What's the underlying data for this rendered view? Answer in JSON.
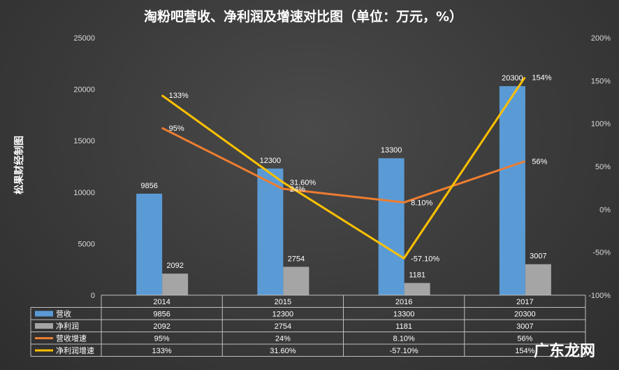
{
  "chart_data": {
    "type": "bar",
    "title": "淘粉吧营收、净利润及增速对比图（单位：万元，%）",
    "ylabel": "松果财经制图",
    "categories": [
      "2014",
      "2015",
      "2016",
      "2017"
    ],
    "ylim": [
      0,
      25000
    ],
    "y2lim": [
      -100,
      200
    ],
    "y_ticks": [
      "0",
      "5000",
      "10000",
      "15000",
      "20000",
      "25000"
    ],
    "y2_ticks": [
      "-100%",
      "-50%",
      "0%",
      "50%",
      "100%",
      "150%",
      "200%"
    ],
    "series": [
      {
        "name": "营收",
        "kind": "bar",
        "axis": "left",
        "color": "#5b9bd5",
        "values": [
          9856,
          12300,
          13300,
          20300
        ],
        "labels": [
          "9856",
          "12300",
          "13300",
          "20300"
        ],
        "table": [
          "9856",
          "12300",
          "13300",
          "20300"
        ]
      },
      {
        "name": "净利润",
        "kind": "bar",
        "axis": "left",
        "color": "#a5a5a5",
        "values": [
          2092,
          2754,
          1181,
          3007
        ],
        "labels": [
          "2092",
          "2754",
          "1181",
          "3007"
        ],
        "table": [
          "2092",
          "2754",
          "1181",
          "3007"
        ]
      },
      {
        "name": "营收增速",
        "kind": "line",
        "axis": "right",
        "color": "#ed7d31",
        "values": [
          95,
          24,
          8.1,
          56
        ],
        "labels": [
          "95%",
          "24%",
          "8.10%",
          "56%"
        ],
        "table": [
          "95%",
          "24%",
          "8.10%",
          "56%"
        ]
      },
      {
        "name": "净利润增速",
        "kind": "line",
        "axis": "right",
        "color": "#ffc000",
        "values": [
          133,
          31.6,
          -57.1,
          154
        ],
        "labels": [
          "133%",
          "31.60%",
          "-57.10%",
          "154%"
        ],
        "table": [
          "133%",
          "31.60%",
          "-57.10%",
          "154%"
        ]
      }
    ],
    "legend": "table-bottom",
    "grid": false
  },
  "watermark": "广东龙网"
}
